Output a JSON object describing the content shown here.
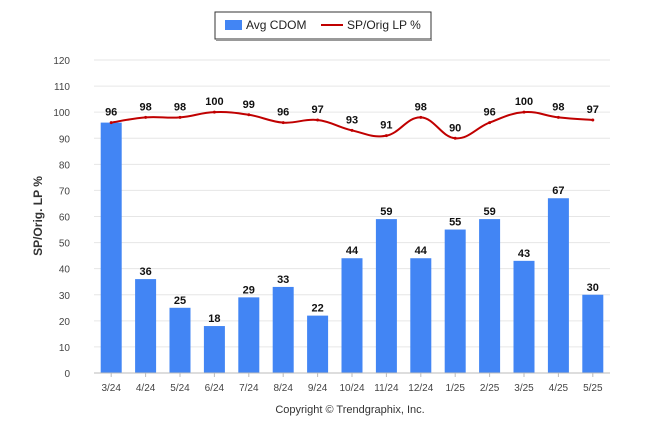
{
  "chart_data": {
    "type": "bar+line",
    "categories": [
      "3/24",
      "4/24",
      "5/24",
      "6/24",
      "7/24",
      "8/24",
      "9/24",
      "10/24",
      "11/24",
      "12/24",
      "1/25",
      "2/25",
      "3/25",
      "4/25",
      "5/25"
    ],
    "series": [
      {
        "name": "Avg CDOM",
        "type": "bar",
        "color": "#4285f4",
        "values": [
          96,
          36,
          25,
          18,
          29,
          33,
          22,
          44,
          59,
          44,
          55,
          59,
          43,
          67,
          30
        ]
      },
      {
        "name": "SP/Orig LP %",
        "type": "line",
        "color": "#c00000",
        "values": [
          96,
          98,
          98,
          100,
          99,
          96,
          97,
          93,
          91,
          98,
          90,
          96,
          100,
          98,
          97
        ]
      }
    ],
    "ylabel": "SP/Orig. LP %",
    "ylim": [
      0,
      120
    ],
    "yticks": [
      0,
      10,
      20,
      30,
      40,
      50,
      60,
      70,
      80,
      90,
      100,
      110,
      120
    ],
    "grid": true,
    "legend_position": "top-center"
  },
  "footer": {
    "copyright": "Copyright © Trendgraphix, Inc."
  }
}
